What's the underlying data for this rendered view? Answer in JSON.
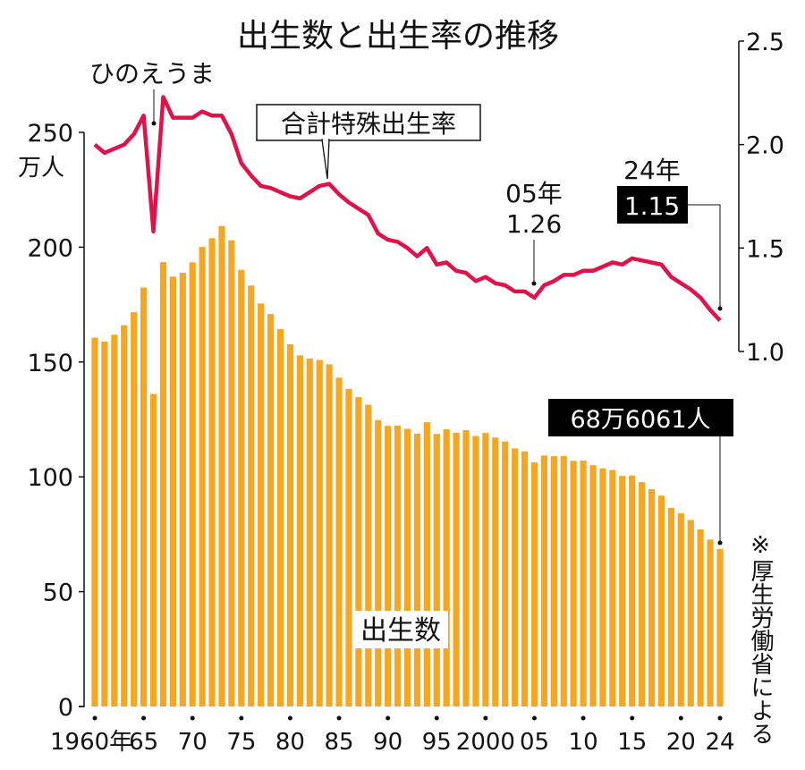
{
  "chart_data": {
    "type": "bar+line",
    "title": "出生数と出生率の推移",
    "source": "※厚生労働省による",
    "x": [
      1960,
      1961,
      1962,
      1963,
      1964,
      1965,
      1966,
      1967,
      1968,
      1969,
      1970,
      1971,
      1972,
      1973,
      1974,
      1975,
      1976,
      1977,
      1978,
      1979,
      1980,
      1981,
      1982,
      1983,
      1984,
      1985,
      1986,
      1987,
      1988,
      1989,
      1990,
      1991,
      1992,
      1993,
      1994,
      1995,
      1996,
      1997,
      1998,
      1999,
      2000,
      2001,
      2002,
      2003,
      2004,
      2005,
      2006,
      2007,
      2008,
      2009,
      2010,
      2011,
      2012,
      2013,
      2014,
      2015,
      2016,
      2017,
      2018,
      2019,
      2020,
      2021,
      2022,
      2023,
      2024
    ],
    "x_tick_years": [
      1960,
      1965,
      1970,
      1975,
      1980,
      1985,
      1990,
      1995,
      2000,
      2005,
      2010,
      2015,
      2020,
      2024
    ],
    "x_tick_labels": [
      "1960年",
      "65",
      "70",
      "75",
      "80",
      "85",
      "90",
      "95",
      "2000",
      "05",
      "10",
      "15",
      "20",
      "24"
    ],
    "left_axis": {
      "unit_label": "万人",
      "ylim": [
        0,
        250
      ],
      "ticks": [
        0,
        50,
        100,
        150,
        200,
        250
      ],
      "tick_labels": [
        "0",
        "50",
        "100",
        "150",
        "200",
        "250"
      ]
    },
    "right_axis": {
      "ylim": [
        1.0,
        2.5
      ],
      "ticks": [
        1.0,
        1.5,
        2.0,
        2.5
      ],
      "tick_labels": [
        "1.0",
        "1.5",
        "2.0",
        "2.5"
      ]
    },
    "series": [
      {
        "name": "出生数",
        "type": "bar",
        "axis": "left",
        "color": "#f5a623",
        "values": [
          160.6,
          158.9,
          161.9,
          166.0,
          171.7,
          182.4,
          136.1,
          193.5,
          187.2,
          188.9,
          193.4,
          200.1,
          203.9,
          209.2,
          203.0,
          190.1,
          183.3,
          175.5,
          170.9,
          164.3,
          157.7,
          152.9,
          151.5,
          150.9,
          149.0,
          143.2,
          138.3,
          134.7,
          131.4,
          124.7,
          122.2,
          122.3,
          120.9,
          118.8,
          123.8,
          118.7,
          120.7,
          119.2,
          120.3,
          117.8,
          119.1,
          117.1,
          115.4,
          112.4,
          111.1,
          106.3,
          109.3,
          109.0,
          109.1,
          107.0,
          107.1,
          105.1,
          103.7,
          103.0,
          100.4,
          100.6,
          97.7,
          94.6,
          91.8,
          86.5,
          84.1,
          81.2,
          77.1,
          72.7,
          68.6
        ]
      },
      {
        "name": "合計特殊出生率",
        "type": "line",
        "axis": "right",
        "color": "#e0124a",
        "values": [
          2.0,
          1.96,
          1.98,
          2.0,
          2.05,
          2.14,
          1.58,
          2.23,
          2.13,
          2.13,
          2.13,
          2.16,
          2.14,
          2.14,
          2.05,
          1.91,
          1.85,
          1.8,
          1.79,
          1.77,
          1.75,
          1.74,
          1.77,
          1.8,
          1.81,
          1.76,
          1.72,
          1.69,
          1.66,
          1.57,
          1.54,
          1.53,
          1.5,
          1.46,
          1.5,
          1.42,
          1.43,
          1.39,
          1.38,
          1.34,
          1.36,
          1.33,
          1.32,
          1.29,
          1.29,
          1.26,
          1.32,
          1.34,
          1.37,
          1.37,
          1.39,
          1.39,
          1.41,
          1.43,
          1.42,
          1.45,
          1.44,
          1.43,
          1.42,
          1.36,
          1.33,
          1.3,
          1.26,
          1.2,
          1.15
        ]
      }
    ],
    "annotations": {
      "hinoeuma": "ひのえうま",
      "tfr_label": "合計特殊出生率",
      "births_label": "出生数",
      "y2005_year": "05年",
      "y2005_value": "1.26",
      "y2024_year": "24年",
      "y2024_value": "1.15",
      "y2024_births": "68万6061人"
    }
  }
}
